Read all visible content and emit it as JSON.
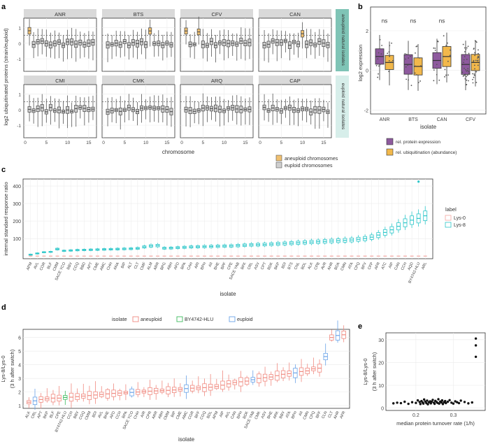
{
  "panels": {
    "a": "a",
    "b": "b",
    "c": "c",
    "d": "d",
    "e": "e"
  },
  "colors": {
    "facet_strip": "#d9d9d9",
    "grid": "#ebebeb",
    "aneuploid_fill": "#f0c070",
    "euploid_fill": "#cfcfcf",
    "side_aneuploid": "#7fc4b6",
    "side_natural": "#d7eeea",
    "protein": "#8e5a9e",
    "ubiq": "#f2b84b",
    "lys0": "#f4a6a0",
    "lys8": "#2bc6c9",
    "aneuploid_line": "#f08a80",
    "bylhlu": "#3dbb5e",
    "euploid_line": "#6aa3e8"
  },
  "chart_data": [
    {
      "panel": "a",
      "type": "boxplot-facets",
      "ylabel": "log2 ubiquitinated proteins (strain/euploid)",
      "xlabel": "chromosome",
      "x_ticks": [
        "0",
        "5",
        "10",
        "15"
      ],
      "y_ticks": [
        "1",
        "0",
        "-1"
      ],
      "ylim": [
        -1.8,
        1.6
      ],
      "reference_line": 0.5,
      "facets": [
        {
          "name": "ANR",
          "aneuploid": [
            1
          ]
        },
        {
          "name": "BTS",
          "aneuploid": [
            11
          ]
        },
        {
          "name": "CFV",
          "aneuploid": [
            1,
            4
          ]
        },
        {
          "name": "CAN",
          "aneuploid": [
            10
          ]
        },
        {
          "name": "CMI",
          "aneuploid": []
        },
        {
          "name": "CMK",
          "aneuploid": []
        },
        {
          "name": "ARQ",
          "aneuploid": []
        },
        {
          "name": "CAP",
          "aneuploid": []
        }
      ],
      "row_labels": [
        "aneuploid natural isolates",
        "euploid natural isolates"
      ],
      "legend": [
        "aneuploid chromosomes",
        "euploid chromosomes"
      ]
    },
    {
      "panel": "b",
      "type": "boxplot",
      "ylabel": "log2 expression",
      "xlabel": "isolate",
      "categories": [
        "ANR",
        "BTS",
        "CAN",
        "CFV"
      ],
      "y_ticks": [
        "2",
        "0",
        "-2"
      ],
      "ylim": [
        -2.2,
        3.2
      ],
      "significance": [
        "ns",
        "ns",
        "ns"
      ],
      "series": [
        {
          "name": "rel. protein expression",
          "medians": [
            0.7,
            0.3,
            0.5,
            0.3
          ]
        },
        {
          "name": "rel. ubiquitination (abundance)",
          "medians": [
            0.4,
            0.2,
            0.7,
            0.4
          ]
        }
      ]
    },
    {
      "panel": "c",
      "type": "boxplot",
      "ylabel": "internal standard response ratio",
      "xlabel": "isolate",
      "y_ticks": [
        "100",
        "200",
        "300",
        "400"
      ],
      "ylim": [
        -15,
        440
      ],
      "legend_title": "label",
      "series_names": [
        "Lys-0",
        "Lys-8"
      ],
      "categories": [
        "APM",
        "AVL",
        "COR",
        "BLF",
        "CMM",
        "SACE YCO",
        "BBV",
        "CGQ",
        "BBD",
        "APT",
        "CME",
        "AMC",
        "CHH",
        "ANA",
        "BIP",
        "ALT",
        "CLT",
        "CMF",
        "ALM",
        "ARR",
        "BPG",
        "ABH",
        "AFD",
        "BPA",
        "CAH",
        "ARI",
        "BPH",
        "AII",
        "BHE",
        "BPF",
        "CPE",
        "SACE YAB",
        "BFK",
        "CRL",
        "ASV",
        "CPT",
        "BDK",
        "BKP",
        "BDI",
        "BTS",
        "CNL",
        "BDL",
        "ALK",
        "CPB",
        "AVR",
        "AHR",
        "BDA",
        "CMN",
        "ATA",
        "CPQ",
        "BFV",
        "CFP",
        "AFR",
        "ATC",
        "AIP",
        "CAN",
        "CCH",
        "AQD",
        "BY4742-HLU",
        "ARL"
      ],
      "lys8_values": [
        8,
        15,
        22,
        24,
        40,
        30,
        32,
        34,
        35,
        36,
        37,
        38,
        39,
        40,
        41,
        42,
        44,
        52,
        58,
        60,
        45,
        46,
        48,
        50,
        52,
        53,
        54,
        55,
        56,
        57,
        58,
        60,
        62,
        64,
        65,
        66,
        68,
        70,
        72,
        74,
        76,
        78,
        80,
        82,
        84,
        86,
        88,
        90,
        92,
        96,
        100,
        108,
        120,
        135,
        150,
        170,
        190,
        205,
        215,
        230
      ],
      "lys0_values": [
        0,
        0,
        0,
        0,
        0,
        0,
        0,
        0,
        0,
        0,
        0,
        0,
        0,
        0,
        0,
        0,
        0,
        0,
        0,
        0,
        0,
        0,
        0,
        0,
        0,
        0,
        0,
        0,
        0,
        0,
        0,
        0,
        0,
        0,
        0,
        0,
        0,
        0,
        0,
        0,
        0,
        0,
        0,
        0,
        0,
        0,
        0,
        0,
        0,
        0,
        0,
        0,
        0,
        0,
        0,
        0,
        0,
        0,
        0,
        0
      ],
      "outlier": {
        "category": "BY4742-HLU",
        "value": 425
      }
    },
    {
      "panel": "d",
      "type": "boxplot",
      "ylabel": "Lys-8/Lys-0\n(3 h after switch)",
      "xlabel": "isolate",
      "y_ticks": [
        "1",
        "2",
        "3",
        "4",
        "5",
        "6"
      ],
      "ylim": [
        0.8,
        6.6
      ],
      "legend_title": "isolate",
      "legend": [
        "aneuploid",
        "BY4742-HLU",
        "euploid"
      ],
      "categories": [
        "ALK",
        "CRL",
        "APT",
        "BKP",
        "BLF",
        "CPE",
        "BY4742-HLU",
        "CCH",
        "BBV",
        "CGQ",
        "CMM",
        "BDI",
        "AVL",
        "BHE",
        "AFD",
        "CCH",
        "BPA",
        "SACE YCO",
        "CHH",
        "AIR",
        "CPR",
        "ARR",
        "ABH",
        "CMM",
        "BIP",
        "CME",
        "AMC",
        "CGR",
        "BFF",
        "CGQ",
        "BDL",
        "APM",
        "AIP",
        "AVL",
        "CAN",
        "BPH",
        "BDK",
        "SACE YAB",
        "CMK",
        "ASV",
        "BHE",
        "ARK",
        "BBV",
        "ATA",
        "BPH",
        "AII",
        "CMN",
        "CPQ",
        "BFF",
        "CLN",
        "CLT",
        "AHR",
        "AFR"
      ],
      "groups": [
        "a",
        "e",
        "a",
        "a",
        "a",
        "a",
        "b",
        "a",
        "a",
        "a",
        "a",
        "a",
        "a",
        "a",
        "a",
        "a",
        "a",
        "e",
        "a",
        "a",
        "a",
        "a",
        "a",
        "a",
        "a",
        "a",
        "e",
        "a",
        "a",
        "a",
        "a",
        "a",
        "a",
        "a",
        "a",
        "a",
        "a",
        "e",
        "a",
        "a",
        "a",
        "a",
        "a",
        "a",
        "e",
        "a",
        "a",
        "a",
        "a",
        "e",
        "a",
        "e",
        "a"
      ],
      "medians": [
        1.25,
        1.35,
        1.45,
        1.5,
        1.55,
        1.55,
        1.6,
        1.62,
        1.66,
        1.7,
        1.74,
        1.78,
        1.82,
        1.86,
        1.9,
        1.92,
        1.95,
        1.97,
        2.0,
        2.03,
        2.06,
        2.08,
        2.1,
        2.12,
        2.15,
        2.2,
        2.25,
        2.28,
        2.3,
        2.32,
        2.35,
        2.4,
        2.5,
        2.6,
        2.7,
        2.75,
        2.8,
        2.9,
        3.0,
        3.05,
        3.1,
        3.2,
        3.3,
        3.35,
        3.4,
        3.5,
        3.55,
        3.7,
        3.75,
        4.6,
        6.0,
        6.15,
        6.2
      ]
    },
    {
      "panel": "e",
      "type": "scatter",
      "xlabel": "median protein turnover rate (1/h)",
      "ylabel": "Lys-8/Lys-0\n(3 h after switch)",
      "x_ticks": [
        "0.2",
        "0.3"
      ],
      "y_ticks": [
        "0",
        "10",
        "20",
        "30"
      ],
      "xlim": [
        0.12,
        0.385
      ],
      "ylim": [
        -1,
        33
      ],
      "points": [
        [
          0.36,
          30.5
        ],
        [
          0.36,
          27.5
        ],
        [
          0.36,
          22.5
        ],
        [
          0.14,
          2.1
        ],
        [
          0.15,
          2.4
        ],
        [
          0.16,
          2.2
        ],
        [
          0.17,
          2.8
        ],
        [
          0.18,
          1.9
        ],
        [
          0.19,
          2.6
        ],
        [
          0.2,
          2.3
        ],
        [
          0.205,
          3.4
        ],
        [
          0.21,
          2.7
        ],
        [
          0.212,
          1.8
        ],
        [
          0.215,
          3.1
        ],
        [
          0.218,
          2.5
        ],
        [
          0.22,
          2.0
        ],
        [
          0.222,
          3.8
        ],
        [
          0.225,
          2.9
        ],
        [
          0.228,
          2.2
        ],
        [
          0.23,
          3.3
        ],
        [
          0.232,
          1.7
        ],
        [
          0.235,
          2.6
        ],
        [
          0.238,
          3.0
        ],
        [
          0.24,
          2.1
        ],
        [
          0.242,
          2.8
        ],
        [
          0.245,
          3.6
        ],
        [
          0.248,
          2.4
        ],
        [
          0.25,
          1.9
        ],
        [
          0.252,
          3.2
        ],
        [
          0.255,
          2.7
        ],
        [
          0.258,
          2.3
        ],
        [
          0.26,
          3.9
        ],
        [
          0.262,
          2.0
        ],
        [
          0.265,
          2.9
        ],
        [
          0.268,
          2.5
        ],
        [
          0.27,
          3.4
        ],
        [
          0.272,
          1.8
        ],
        [
          0.275,
          2.6
        ],
        [
          0.278,
          3.1
        ],
        [
          0.28,
          2.2
        ],
        [
          0.285,
          2.8
        ],
        [
          0.29,
          3.5
        ],
        [
          0.295,
          2.4
        ],
        [
          0.3,
          2.0
        ],
        [
          0.305,
          3.0
        ],
        [
          0.31,
          2.6
        ],
        [
          0.315,
          2.2
        ],
        [
          0.32,
          3.3
        ],
        [
          0.33,
          2.7
        ],
        [
          0.34,
          2.1
        ],
        [
          0.35,
          2.5
        ]
      ]
    }
  ]
}
